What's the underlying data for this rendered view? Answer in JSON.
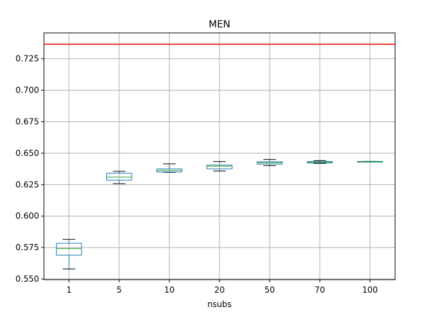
{
  "chart_data": {
    "type": "box",
    "title": "MEN",
    "xlabel": "nsubs",
    "ylabel": "",
    "categories": [
      "1",
      "5",
      "10",
      "20",
      "50",
      "70",
      "100"
    ],
    "ylim": [
      0.5495,
      0.7455
    ],
    "yticks": [
      0.55,
      0.575,
      0.6,
      0.625,
      0.65,
      0.675,
      0.7,
      0.725
    ],
    "ytick_labels": [
      "0.550",
      "0.575",
      "0.600",
      "0.625",
      "0.650",
      "0.675",
      "0.700",
      "0.725"
    ],
    "grid": true,
    "boxes": [
      {
        "category": "1",
        "whisker_low": 0.558,
        "q1": 0.569,
        "median": 0.5742,
        "q3": 0.5784,
        "whisker_high": 0.5815
      },
      {
        "category": "5",
        "whisker_low": 0.6258,
        "q1": 0.6285,
        "median": 0.631,
        "q3": 0.634,
        "whisker_high": 0.6355
      },
      {
        "category": "10",
        "whisker_low": 0.6347,
        "q1": 0.635,
        "median": 0.6363,
        "q3": 0.6375,
        "whisker_high": 0.6415
      },
      {
        "category": "20",
        "whisker_low": 0.6358,
        "q1": 0.6375,
        "median": 0.6397,
        "q3": 0.6405,
        "whisker_high": 0.6433
      },
      {
        "category": "50",
        "whisker_low": 0.64,
        "q1": 0.6413,
        "median": 0.6423,
        "q3": 0.6432,
        "whisker_high": 0.645
      },
      {
        "category": "70",
        "whisker_low": 0.6418,
        "q1": 0.6422,
        "median": 0.6428,
        "q3": 0.6433,
        "whisker_high": 0.644
      },
      {
        "category": "100",
        "whisker_low": 0.643,
        "q1": 0.6431,
        "median": 0.6432,
        "q3": 0.6434,
        "whisker_high": 0.6435
      }
    ],
    "reference_line": {
      "y": 0.7365,
      "color": "#ff0000"
    },
    "colors": {
      "box": "#1f77b4",
      "median": "#2ca02c",
      "whisker_cap": "#000000",
      "grid": "#b0b0b0",
      "reference": "#ff0000"
    }
  }
}
